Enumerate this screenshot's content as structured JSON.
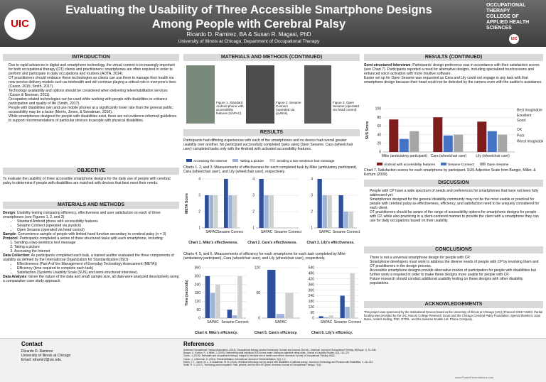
{
  "header": {
    "title": "Evaluating the Usability of Three Accessible Smartphone Designs Among People with Cerebral Palsy",
    "authors": "Ricardo D. Ramirez, BA & Susan R. Magasi, PhD",
    "affiliation": "University of Illinois at Chicago, Department of Occupational Therapy",
    "logo": "UIC",
    "dept_lines": [
      "OCCUPATIONAL",
      "THERAPY",
      "COLLEGE OF",
      "APPLIED HEALTH",
      "SCIENCES"
    ],
    "badge": "UIC"
  },
  "intro": {
    "heading": "INTRODUCTION",
    "bullets": [
      "Due to rapid advances in digital and smartphone technology, the virtual context is increasingly important for both occupational therapy (OT) clients and practitioners; smartphones are often required in order to perform and participate in daily occupations and routines (AOTA, 2014).",
      "OT practitioners should embrace these technologies as clients can use them to manage their health via new service delivery models such as telehealth and will continue playing a critical role in everyone's lives (Cason, 2015; Smith, 2017).",
      "Technology availability and options should be considered when delivering telerehabilitation services (Cason & Brennan, 2011).",
      "Occupation-related technologies can be used while working with people with disabilities to enhance participation and quality of life (Smith, 2017).",
      "People with disabilities own and use mobile phones at a significantly lower rate than the general public; accessibility may be a factor (Morris, Jones, & Sweatman, 2016).",
      "While smartphones designed for people with disabilities exist, there are not evidence-informed guidelines to support recommendations of particular devices to people with physical disabilities."
    ]
  },
  "objective": {
    "heading": "OBJECTIVE",
    "text": "To evaluate the usability of three accessible smartphone designs for the daily use of people with cerebral palsy to determine if people with disabilities are matched with devices that best meet their needs."
  },
  "methods": {
    "heading": "MATERIALS AND METHODS",
    "design_label": "Design",
    "design": ": Usability testing comparing efficiency, effectiveness and user satisfaction on each of three smartphones (see Figures 1, 2, and 3)",
    "design_items": [
      "Standard Android phone with accessibility features",
      "Sesame Connect (operated via joystick)",
      "Open Sesame (operated via head control)"
    ],
    "sample_label": "Sample",
    "sample": ": Convenience sample of people with limited hand function secondary to cerebral palsy (n = 3)",
    "protocol_label": "Protocol",
    "protocol": ": Participants completed a series of three structured tasks with each smartphone, including:",
    "protocol_items": [
      "Sending a two-sentence text message",
      "Taking a picture",
      "Accessing the Internet"
    ],
    "collection_label": "Data Collection",
    "collection": ": As participants completed each task, a trained auditor evaluated the three components of usability as defined by the International Organization for Standardization (ISO):",
    "collection_items": [
      "Effectiveness (Part A of the Management of Everyday Technology Assessment (META))",
      "Efficiency (time required to complete each task)",
      "Satisfaction (Systems Usability Scale (SUS) and semi-structured interview)."
    ],
    "analysis_label": "Data Analysis",
    "analysis": ": Given the nature of the data and small sample size, all data were analyzed descriptively using a comparative case study approach."
  },
  "methods_cont": {
    "heading": "MATERIALS AND METHODS (CONTINUED)",
    "figures": [
      "Figure 1. Standard Android phone with accessibility features (SAPAC).",
      "Figure 2. Sesame Connect (operated via joystick).",
      "Figure 3. Open Sesame (operated via head control)."
    ]
  },
  "results": {
    "heading": "RESULTS",
    "text": "Participants had differing experiences with each of the smartphones and no device had overall greater usability over another. No participant successfully completed tasks using Open Sesame. Cara (wheelchair user) completed tasks only with the Android with activated accessibility features.",
    "caption_123": "Charts 1, 2, and 3. Measurements of effectiveness for each completed task by Mike (ambulatory participant), Cara (wheelchair user), and Lily (wheelchair user), respectively.",
    "caption_456": "Charts 4, 5, and 6. Measurements of efficiency for each smartphone for each task completed by Mike (ambulatory participant), Cara (wheelchair user), and Lily (wheelchair user), respectively."
  },
  "task_legend": [
    {
      "name": "Accessing the Internet",
      "color": "#2e4f9c"
    },
    {
      "name": "Taking a picture",
      "color": "#9fb3d9"
    },
    {
      "name": "Sending a two-sentence text message",
      "color": "#cfcfcf"
    }
  ],
  "chart_data": [
    {
      "type": "bar",
      "title": "Chart 1. Mike's effectiveness.",
      "ylabel": "META Score",
      "categories": [
        "SAPAC",
        "Sesame Connect"
      ],
      "series": [
        {
          "values": [
            3,
            4
          ]
        },
        {
          "values": [
            3,
            3
          ]
        },
        {
          "values": [
            3,
            3
          ]
        }
      ],
      "ylim": [
        1,
        4
      ],
      "yticks": [
        1,
        2,
        3,
        4
      ]
    },
    {
      "type": "bar",
      "title": "Chart 2. Cara's effectiveness.",
      "categories": [
        "SAPAC",
        "Sesame Connect"
      ],
      "series": [
        {
          "values": [
            4,
            1
          ]
        },
        {
          "values": [
            3,
            1
          ]
        },
        {
          "values": [
            3,
            1
          ]
        }
      ],
      "ylim": [
        1,
        4
      ],
      "yticks": [
        1,
        2,
        3,
        4
      ]
    },
    {
      "type": "bar",
      "title": "Chart 3. Lily's effectiveness.",
      "categories": [
        "SAPAC",
        "Sesame Connect"
      ],
      "series": [
        {
          "values": [
            4,
            3
          ]
        },
        {
          "values": [
            3,
            2
          ]
        },
        {
          "values": [
            3,
            2
          ]
        }
      ],
      "ylim": [
        1,
        4
      ],
      "yticks": [
        1,
        2,
        3,
        4
      ]
    },
    {
      "type": "bar",
      "title": "Chart 4. Mike's efficiency.",
      "ylabel": "Time (seconds)",
      "categories": [
        "SAPAC",
        "Sesame Connect"
      ],
      "series": [
        {
          "values": [
            300,
            60
          ]
        },
        {
          "values": [
            180,
            20
          ]
        },
        {
          "values": [
            240,
            300
          ]
        }
      ],
      "ylim": [
        0,
        360
      ],
      "yticks": [
        0,
        60,
        120,
        180,
        240,
        300,
        360
      ]
    },
    {
      "type": "bar",
      "title": "Chart 5. Cara's efficiency.",
      "categories": [
        "SAPAC"
      ],
      "series": [
        {
          "values": [
            115
          ]
        },
        {
          "values": [
            10
          ]
        },
        {
          "values": [
            60
          ]
        }
      ],
      "ylim": [
        0,
        120
      ],
      "yticks": [
        0,
        60,
        120
      ]
    },
    {
      "type": "bar",
      "title": "Chart 6. Lily's efficiency.",
      "categories": [
        "SAPAC",
        "Sesame Connect"
      ],
      "series": [
        {
          "values": [
            20,
            240
          ]
        },
        {
          "values": [
            10,
            120
          ]
        },
        {
          "values": [
            30,
            480
          ]
        }
      ],
      "ylim": [
        0,
        540
      ],
      "yticks": [
        0,
        60,
        120,
        180,
        240,
        300,
        360,
        420,
        480,
        540
      ]
    },
    {
      "type": "bar",
      "title": "Chart 7. Satisfaction scores for each smartphone by participant. SUS Adjective Scale from Bangor, Miller, & Kortum (2009).",
      "ylabel": "SUS Score",
      "categories": [
        "Mike (ambulatory participant)",
        "Cara (wheelchair user)",
        "Lily (wheelchair user)"
      ],
      "series": [
        {
          "name": "Android with accessibility features",
          "color": "#7f1d1d",
          "values": [
            75,
            80,
            70
          ]
        },
        {
          "name": "Sesame Connect",
          "color": "#4472c4",
          "values": [
            30,
            38,
            48
          ]
        },
        {
          "name": "Open Sesame",
          "color": "#a6a6a6",
          "values": [
            48,
            40,
            40
          ]
        }
      ],
      "ylim": [
        0,
        100
      ],
      "yticks": [
        0,
        20,
        40,
        60,
        80,
        100
      ],
      "adjective_scale": [
        {
          "label": "Best Imaginable",
          "value": 97
        },
        {
          "label": "Excellent",
          "value": 85
        },
        {
          "label": "Good",
          "value": 73
        },
        {
          "label": "OK",
          "value": 52
        },
        {
          "label": "Poor",
          "value": 38
        },
        {
          "label": "Worst Imaginable",
          "value": 25
        }
      ]
    }
  ],
  "results_cont": {
    "heading": "RESULTS (CONTINUED)",
    "interviews_label": "Semi-structured Interviews",
    "interviews": ": Participants' design preference was in accordance with their satisfaction scores (see Chart 7). Participants reported a need for alternative designs, including specialized touchscreens and enhanced voice activation with more intuitive software.",
    "setup": "Easier set up for Open Sesame was requested as Cara and Lily could not engage in any task with that smartphone design because their head could not be detected by the camera even with the auditor's assistance."
  },
  "discussion": {
    "heading": "DISCUSSION",
    "bullets": [
      "People with CP have a wide spectrum of needs and preferences for smartphones that have not been fully addressed yet.",
      "Smartphones designed for the general disability community may not be the most usable or practical for people with cerebral palsy as effectiveness, efficiency, and satisfaction need to be uniquely considered for each client.",
      "OT practitioners should be aware of the range of accessibility options for smartphone designs for people with CP, while also practicing in a client-centered manner to provide the client with a smartphone they can use for daily occupations based on their usability."
    ]
  },
  "conclusions": {
    "heading": "CONCLUSIONS",
    "bullets": [
      "There is not a universal smartphone design for people with CP.",
      "Smartphone developers must work to address the diverse needs of people with CP by involving them and OT practitioners in the design process.",
      "Accessible smartphone designs provide alternative modes of participation for people with disabilities but further work is required in order to make these designs more usable for people with CP.",
      "Future research should conduct additional usability testing on these designs with other disability populations."
    ]
  },
  "acknowledgements": {
    "heading": "ACKNOWLEDGEMENTS",
    "text": "This project was sponsored by the Institutional Review Board at the University of Illinois at Chicago (UIC) (Protocol #2017-0100). Partial funding was provided by the UIC Honors College Research Grant and the Chicago Cerebral Palsy Foundation. Special thanks to Joan Mace, Anders Kelling, PhD, OTR/L, and the Sesame Enable Ltd. Phone Company."
  },
  "contact": {
    "heading": "Contact",
    "lines": [
      "Ricardo D. Ramirez",
      "University of Illinois at Chicago",
      "Email: rdramir2@uic.edu"
    ]
  },
  "references": {
    "heading": "References",
    "lines": [
      "American Occupational Therapy Association. (2014). Occupational therapy practice framework: Domain and process (3rd ed.). American Journal of Occupational Therapy, 68(Suppl. 1), S1-S48.",
      "Bangor, A., Kortum, P., & Miller, J. (2009). Determining what individual SUS scores mean: Adding an adjective rating scale. Journal of Usability Studies, 4(3), 114-123.",
      "Cason, J. (2015). Telehealth and occupational therapy: Integral to the triple aim of health care reform. American Journal of Occupational Therapy, 69(2).",
      "Cason, J., & Brennan, D. (2011). Telerehabilitation. International Journal of Telerehabilitation, 3(1), 1-2.",
      "Morris, J. T., Jones, M. L., & Sweatman, W. M. (2016). Wireless technology use by people with disabilities: A national survey. Journal on Technology and Persons with Disabilities, 4, 101-113.",
      "Smith, R. O. (2017). Technology and occupation: Past, present, and the next 100 years. American Journal of Occupational Therapy, 71(6)."
    ],
    "footer": "www.PosterPresentations.com"
  }
}
